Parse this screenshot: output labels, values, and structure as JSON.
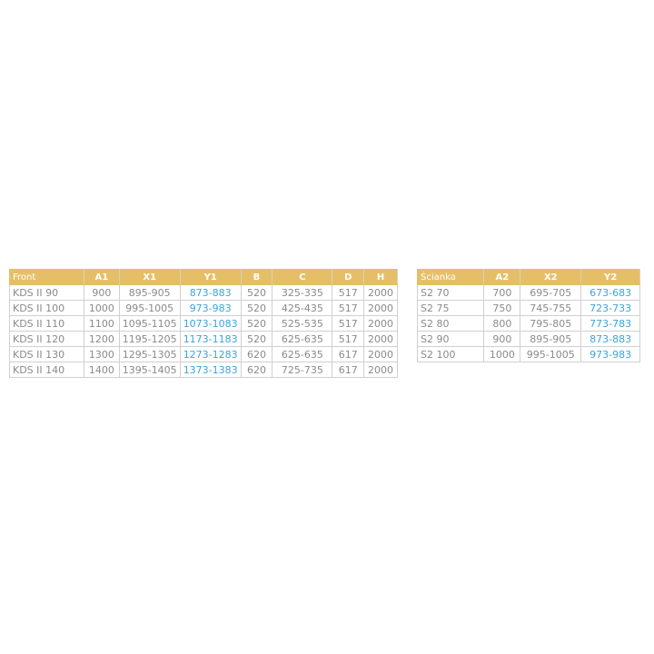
{
  "front": {
    "headers": [
      "Front",
      "A1",
      "X1",
      "Y1",
      "B",
      "C",
      "D",
      "H"
    ],
    "rows": [
      [
        "KDS II 90",
        "900",
        "895-905",
        "873-883",
        "520",
        "325-335",
        "517",
        "2000"
      ],
      [
        "KDS II 100",
        "1000",
        "995-1005",
        "973-983",
        "520",
        "425-435",
        "517",
        "2000"
      ],
      [
        "KDS II 110",
        "1100",
        "1095-1105",
        "1073-1083",
        "520",
        "525-535",
        "517",
        "2000"
      ],
      [
        "KDS II 120",
        "1200",
        "1195-1205",
        "1173-1183",
        "520",
        "625-635",
        "517",
        "2000"
      ],
      [
        "KDS II 130",
        "1300",
        "1295-1305",
        "1273-1283",
        "620",
        "625-635",
        "617",
        "2000"
      ],
      [
        "KDS II 140",
        "1400",
        "1395-1405",
        "1373-1383",
        "620",
        "725-735",
        "617",
        "2000"
      ]
    ]
  },
  "scianka": {
    "headers": [
      "Ścianka",
      "A2",
      "X2",
      "Y2"
    ],
    "rows": [
      [
        "S2 70",
        "700",
        "695-705",
        "673-683"
      ],
      [
        "S2 75",
        "750",
        "745-755",
        "723-733"
      ],
      [
        "S2 80",
        "800",
        "795-805",
        "773-783"
      ],
      [
        "S2 90",
        "900",
        "895-905",
        "873-883"
      ],
      [
        "S2 100",
        "1000",
        "995-1005",
        "973-983"
      ]
    ]
  },
  "colors": {
    "header": "#e5bf68",
    "highlight": "#3aa5df",
    "text": "#8a8a8a"
  }
}
